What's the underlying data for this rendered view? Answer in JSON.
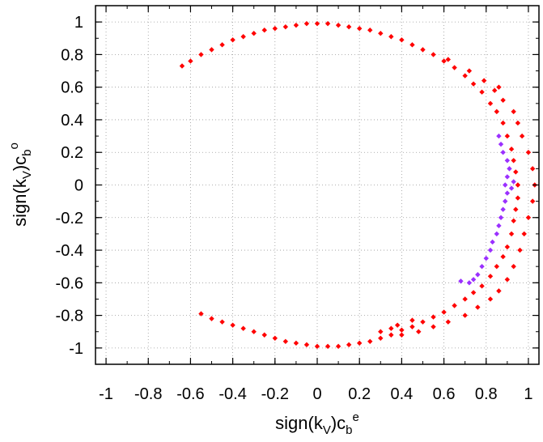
{
  "chart_data": {
    "type": "scatter",
    "title": "",
    "xlabel": {
      "base": "sign(k",
      "sub": "V",
      "mid": ")c",
      "sub2": "b",
      "sup": "e"
    },
    "ylabel": {
      "base": "sign(k",
      "sub": "V",
      "mid": ")c",
      "sub2": "b",
      "sup": "o"
    },
    "xlim": [
      -1.05,
      1.05
    ],
    "ylim": [
      -1.1,
      1.1
    ],
    "xticks": [
      -1,
      -0.8,
      -0.6,
      -0.4,
      -0.2,
      0,
      0.2,
      0.4,
      0.6,
      0.8,
      1
    ],
    "yticks": [
      -1,
      -0.8,
      -0.6,
      -0.4,
      -0.2,
      0,
      0.2,
      0.4,
      0.6,
      0.8,
      1
    ],
    "xtick_labels": [
      "-1",
      "-0.8",
      "-0.6",
      "-0.4",
      "-0.2",
      "0",
      "0.2",
      "0.4",
      "0.6",
      "0.8",
      "1"
    ],
    "ytick_labels": [
      "-1",
      "-0.8",
      "-0.6",
      "-0.4",
      "-0.2",
      "0",
      "0.2",
      "0.4",
      "0.6",
      "0.8",
      "1"
    ],
    "grid": true,
    "series": [
      {
        "color": "#ff0000",
        "points": [
          [
            -0.64,
            0.73
          ],
          [
            -0.6,
            0.76
          ],
          [
            -0.55,
            0.8
          ],
          [
            -0.5,
            0.83
          ],
          [
            -0.45,
            0.86
          ],
          [
            -0.4,
            0.89
          ],
          [
            -0.35,
            0.91
          ],
          [
            -0.3,
            0.93
          ],
          [
            -0.25,
            0.95
          ],
          [
            -0.2,
            0.96
          ],
          [
            -0.15,
            0.97
          ],
          [
            -0.1,
            0.98
          ],
          [
            -0.05,
            0.99
          ],
          [
            0.0,
            0.99
          ],
          [
            0.05,
            0.99
          ],
          [
            0.1,
            0.98
          ],
          [
            0.15,
            0.97
          ],
          [
            0.2,
            0.96
          ],
          [
            0.25,
            0.95
          ],
          [
            0.3,
            0.93
          ],
          [
            0.35,
            0.91
          ],
          [
            0.4,
            0.89
          ],
          [
            0.45,
            0.86
          ],
          [
            0.5,
            0.83
          ],
          [
            0.55,
            0.8
          ],
          [
            0.6,
            0.76
          ],
          [
            0.65,
            0.72
          ],
          [
            0.7,
            0.67
          ],
          [
            0.74,
            0.62
          ],
          [
            0.78,
            0.57
          ],
          [
            0.82,
            0.5
          ],
          [
            0.85,
            0.45
          ],
          [
            0.88,
            0.38
          ],
          [
            0.9,
            0.3
          ],
          [
            0.92,
            0.22
          ],
          [
            0.93,
            0.15
          ],
          [
            0.94,
            0.08
          ],
          [
            0.95,
            0.0
          ],
          [
            0.95,
            -0.08
          ],
          [
            0.94,
            -0.15
          ],
          [
            0.93,
            -0.22
          ],
          [
            0.92,
            -0.3
          ],
          [
            0.9,
            -0.38
          ],
          [
            0.88,
            -0.44
          ],
          [
            0.85,
            -0.5
          ],
          [
            0.82,
            -0.56
          ],
          [
            0.78,
            -0.62
          ],
          [
            0.74,
            -0.66
          ],
          [
            0.7,
            -0.7
          ],
          [
            0.65,
            -0.74
          ],
          [
            0.6,
            -0.78
          ],
          [
            0.55,
            -0.81
          ],
          [
            0.5,
            -0.84
          ],
          [
            0.45,
            -0.87
          ],
          [
            0.4,
            -0.89
          ],
          [
            0.35,
            -0.92
          ],
          [
            0.3,
            -0.94
          ],
          [
            0.25,
            -0.96
          ],
          [
            0.2,
            -0.97
          ],
          [
            0.15,
            -0.98
          ],
          [
            0.1,
            -0.99
          ],
          [
            0.05,
            -0.99
          ],
          [
            0.0,
            -0.99
          ],
          [
            -0.05,
            -0.98
          ],
          [
            -0.1,
            -0.97
          ],
          [
            -0.15,
            -0.96
          ],
          [
            -0.2,
            -0.94
          ],
          [
            -0.25,
            -0.92
          ],
          [
            -0.3,
            -0.9
          ],
          [
            -0.35,
            -0.88
          ],
          [
            -0.4,
            -0.86
          ],
          [
            -0.45,
            -0.84
          ],
          [
            -0.5,
            -0.82
          ],
          [
            -0.55,
            -0.79
          ],
          [
            0.97,
            0.3
          ],
          [
            1.0,
            0.2
          ],
          [
            1.02,
            0.1
          ],
          [
            1.03,
            0.0
          ],
          [
            1.02,
            -0.1
          ],
          [
            1.0,
            -0.2
          ],
          [
            0.98,
            -0.3
          ],
          [
            0.96,
            -0.4
          ],
          [
            0.93,
            -0.5
          ],
          [
            0.9,
            -0.58
          ],
          [
            0.86,
            -0.65
          ],
          [
            0.82,
            -0.7
          ],
          [
            0.76,
            -0.75
          ],
          [
            0.7,
            -0.8
          ],
          [
            0.62,
            -0.84
          ],
          [
            0.55,
            -0.87
          ],
          [
            0.48,
            -0.9
          ],
          [
            0.4,
            -0.92
          ],
          [
            0.35,
            -0.88
          ],
          [
            0.3,
            -0.9
          ],
          [
            0.38,
            -0.86
          ],
          [
            0.45,
            -0.83
          ],
          [
            0.93,
            0.45
          ],
          [
            0.95,
            0.38
          ],
          [
            0.88,
            0.52
          ],
          [
            0.84,
            0.58
          ],
          [
            0.79,
            0.64
          ],
          [
            0.72,
            0.7
          ],
          [
            0.62,
            0.77
          ],
          [
            0.86,
            0.6
          ]
        ]
      },
      {
        "color": "#9b30ff",
        "points": [
          [
            0.88,
            0.2
          ],
          [
            0.9,
            0.15
          ],
          [
            0.91,
            0.1
          ],
          [
            0.9,
            0.05
          ],
          [
            0.89,
            0.0
          ],
          [
            0.9,
            -0.05
          ],
          [
            0.89,
            -0.1
          ],
          [
            0.88,
            -0.15
          ],
          [
            0.87,
            -0.2
          ],
          [
            0.86,
            -0.25
          ],
          [
            0.85,
            -0.3
          ],
          [
            0.83,
            -0.35
          ],
          [
            0.82,
            -0.4
          ],
          [
            0.8,
            -0.45
          ],
          [
            0.78,
            -0.5
          ],
          [
            0.76,
            -0.55
          ],
          [
            0.74,
            -0.58
          ],
          [
            0.72,
            -0.6
          ],
          [
            0.68,
            -0.59
          ],
          [
            0.87,
            0.25
          ],
          [
            0.86,
            0.3
          ],
          [
            0.92,
            -0.02
          ],
          [
            0.93,
            0.02
          ]
        ]
      }
    ]
  }
}
